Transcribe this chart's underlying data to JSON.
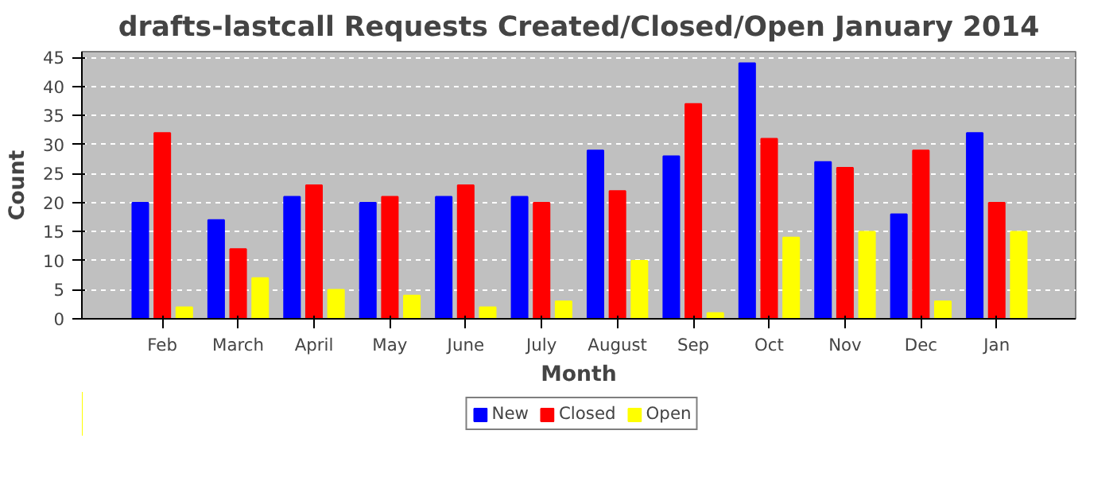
{
  "chart_data": {
    "type": "bar",
    "title": "drafts-lastcall Requests Created/Closed/Open January 2014",
    "xlabel": "Month",
    "ylabel": "Count",
    "categories": [
      "Feb",
      "March",
      "April",
      "May",
      "June",
      "July",
      "August",
      "Sep",
      "Oct",
      "Nov",
      "Dec",
      "Jan"
    ],
    "series": [
      {
        "name": "New",
        "color": "#0000ff",
        "values": [
          20,
          17,
          21,
          20,
          21,
          21,
          29,
          28,
          44,
          27,
          18,
          32
        ]
      },
      {
        "name": "Closed",
        "color": "#ff0000",
        "values": [
          32,
          12,
          23,
          21,
          23,
          20,
          22,
          37,
          31,
          26,
          29,
          20
        ]
      },
      {
        "name": "Open",
        "color": "#ffff00",
        "values": [
          2,
          7,
          5,
          4,
          2,
          3,
          10,
          1,
          14,
          15,
          3,
          15
        ]
      }
    ],
    "ylim": [
      0,
      46
    ],
    "yticks": [
      0,
      5,
      10,
      15,
      20,
      25,
      30,
      35,
      40,
      45
    ],
    "grid": "y",
    "legend": "bottom"
  }
}
